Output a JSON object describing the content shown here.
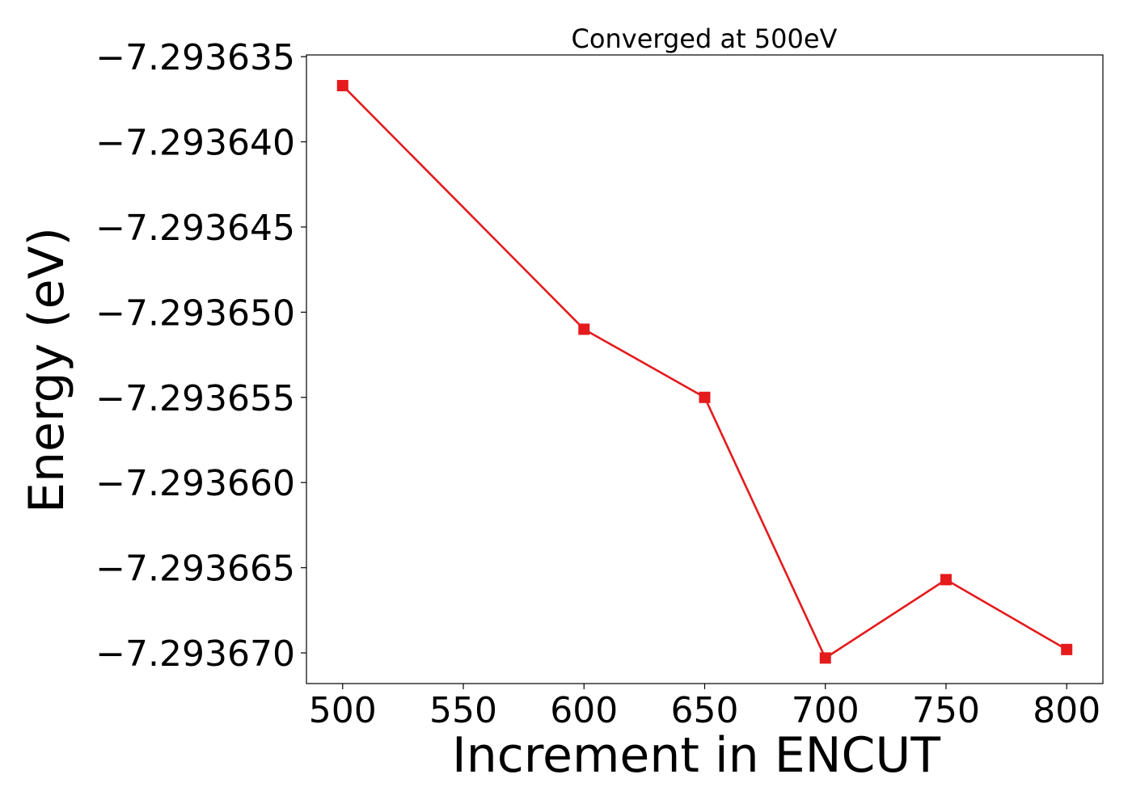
{
  "chart_data": {
    "type": "line",
    "title": "Converged at 500eV",
    "xlabel": "Increment in ENCUT",
    "ylabel": "Energy (eV)",
    "x": [
      500,
      600,
      650,
      700,
      750,
      800
    ],
    "series": [
      {
        "values": [
          -7.2936367,
          -7.293651,
          -7.293655,
          -7.2936703,
          -7.2936657,
          -7.2936698
        ],
        "color": "#e41a1c",
        "marker": "square"
      }
    ],
    "xlim": [
      485,
      815
    ],
    "ylim": [
      -7.2936718,
      -7.2936349
    ],
    "xticks": [
      500,
      550,
      600,
      650,
      700,
      750,
      800
    ],
    "xtick_labels": [
      "500",
      "550",
      "600",
      "650",
      "700",
      "750",
      "800"
    ],
    "yticks": [
      -7.293635,
      -7.29364,
      -7.293645,
      -7.29365,
      -7.293655,
      -7.29366,
      -7.293665,
      -7.29367
    ],
    "ytick_labels": [
      "−7.293635",
      "−7.293640",
      "−7.293645",
      "−7.293650",
      "−7.293655",
      "−7.293660",
      "−7.293665",
      "−7.293670"
    ],
    "grid": false,
    "legend": false
  }
}
